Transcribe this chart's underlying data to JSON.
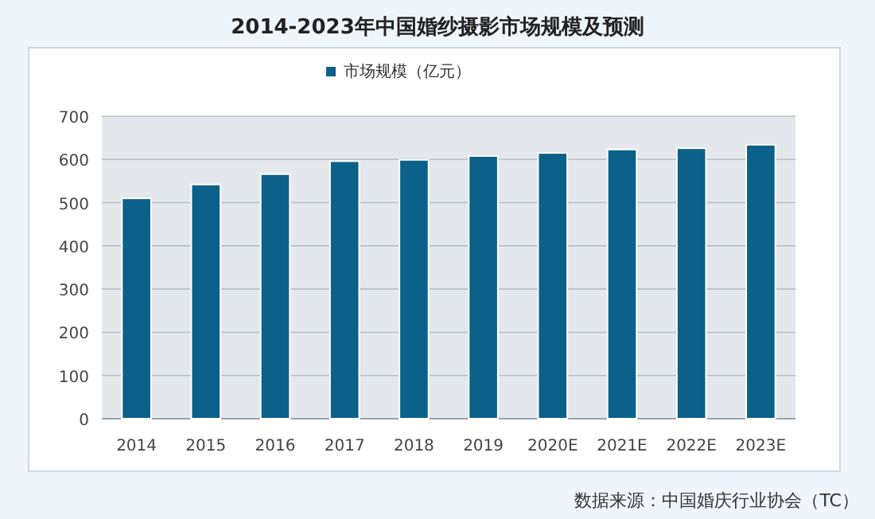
{
  "chart_data": {
    "type": "bar",
    "title": "2014-2023年中国婚纱摄影市场规模及预测",
    "categories": [
      "2014",
      "2015",
      "2016",
      "2017",
      "2018",
      "2019",
      "2020E",
      "2021E",
      "2022E",
      "2023E"
    ],
    "series": [
      {
        "name": "市场规模（亿元）",
        "color": "#0b6189",
        "values": [
          510,
          542,
          566,
          596,
          599,
          608,
          615,
          623,
          626,
          634
        ]
      }
    ],
    "ylim": [
      0,
      700
    ],
    "yticks": [
      0,
      100,
      200,
      300,
      400,
      500,
      600,
      700
    ],
    "grid": "y",
    "legend": "top",
    "annotations": [
      "数据来源：中国婚庆行业协会（TC）"
    ]
  }
}
